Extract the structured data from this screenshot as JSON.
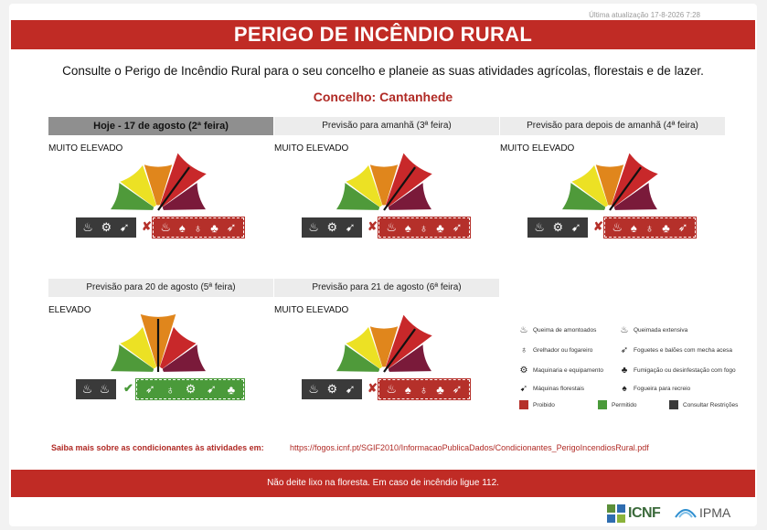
{
  "header": {
    "last_update": "Última atualização 17-8-2026 7:28",
    "title": "PERIGO DE INCÊNDIO RURAL",
    "intro": "Consulte o Perigo de Incêndio Rural para o seu concelho e planeie as suas atividades agrícolas, florestais e de lazer.",
    "council": "Concelho: Cantanhede"
  },
  "gauge_colors": [
    "#4f9a3a",
    "#ece124",
    "#e0861c",
    "#c8282a",
    "#7a1a3a"
  ],
  "panels": [
    {
      "title": "Hoje - 17 de agosto (2ª feira)",
      "level": "MUITO ELEVADO",
      "level_index": 3,
      "today": true,
      "permitted": false
    },
    {
      "title": "Previsão para amanhã (3ª feira)",
      "level": "MUITO ELEVADO",
      "level_index": 3,
      "today": false,
      "permitted": false
    },
    {
      "title": "Previsão para depois de amanhã (4ª feira)",
      "level": "MUITO ELEVADO",
      "level_index": 3,
      "today": false,
      "permitted": false
    },
    {
      "title": "Previsão para 20 de agosto (5ª feira)",
      "level": "ELEVADO",
      "level_index": 2,
      "today": false,
      "permitted": true
    },
    {
      "title": "Previsão para 21 de agosto (6ª feira)",
      "level": "MUITO ELEVADO",
      "level_index": 3,
      "today": false,
      "permitted": false
    }
  ],
  "legend": {
    "items": [
      {
        "label": "Queima de amontoados",
        "icon": "flame-pile-icon"
      },
      {
        "label": "Queimada extensiva",
        "icon": "wide-burn-icon"
      },
      {
        "label": "Grelhador ou fogareiro",
        "icon": "grill-icon"
      },
      {
        "label": "Foguetes e balões com mecha acesa",
        "icon": "rocket-icon"
      },
      {
        "label": "Maquinaria e equipamento",
        "icon": "machinery-icon"
      },
      {
        "label": "Fumigação ou desinfestação com fogo",
        "icon": "smoker-icon"
      },
      {
        "label": "Máquinas florestais",
        "icon": "chainsaw-icon"
      },
      {
        "label": "Fogueira para recreio",
        "icon": "campfire-icon"
      }
    ],
    "status": [
      {
        "label": "Proibido",
        "color": "#b5302a"
      },
      {
        "label": "Permitido",
        "color": "#4a9a3a"
      },
      {
        "label": "Consultar Restrições",
        "color": "#3a3a3a"
      }
    ]
  },
  "links": {
    "saiba_label": "Saiba mais sobre as condicionantes às atividades em:",
    "url": "https://fogos.icnf.pt/SGIF2010/InformacaoPublicaDados/Condicionantes_PerigoIncendiosRural.pdf"
  },
  "footer": {
    "message": "Não deite lixo na floresta. Em caso de incêndio ligue 112.",
    "logo_icnf": "ICNF",
    "logo_ipma": "IPMA"
  }
}
